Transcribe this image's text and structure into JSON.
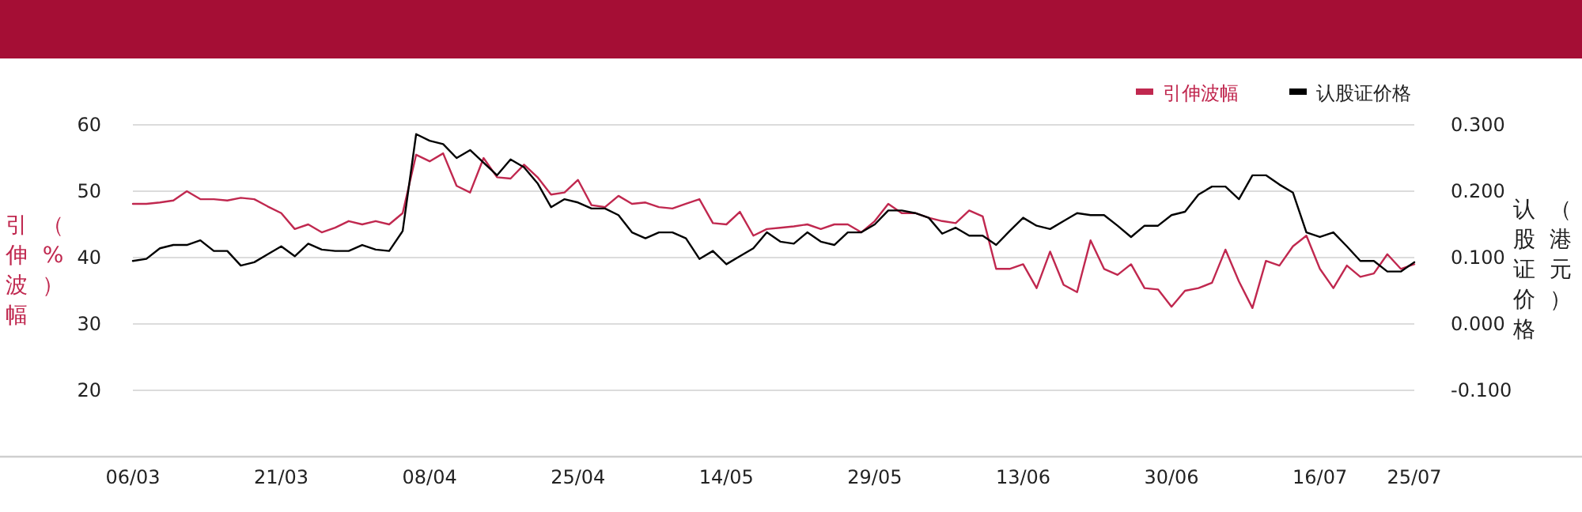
{
  "chart_data": {
    "type": "line",
    "ylabel": "引伸波幅（%）",
    "y2label": "认股证价格（港元）",
    "categories": [
      "06/03",
      null,
      null,
      null,
      null,
      null,
      null,
      null,
      null,
      null,
      null,
      "21/03",
      null,
      null,
      null,
      null,
      null,
      null,
      null,
      null,
      null,
      null,
      "08/04",
      null,
      null,
      null,
      null,
      null,
      null,
      null,
      null,
      null,
      null,
      "25/04",
      null,
      null,
      null,
      null,
      null,
      null,
      null,
      null,
      null,
      null,
      "14/05",
      null,
      null,
      null,
      null,
      null,
      null,
      null,
      null,
      null,
      null,
      "29/05",
      null,
      null,
      null,
      null,
      null,
      null,
      null,
      null,
      null,
      null,
      "13/06",
      null,
      null,
      null,
      null,
      null,
      null,
      null,
      null,
      null,
      null,
      "30/06",
      null,
      null,
      null,
      null,
      null,
      null,
      null,
      null,
      null,
      null,
      "16/07",
      null,
      null,
      null,
      null,
      null,
      null,
      "25/07"
    ],
    "series": [
      {
        "name": "引伸波幅",
        "color": "#c0284f",
        "values": [
          48.1,
          48.1,
          48.3,
          48.6,
          50.0,
          48.8,
          48.8,
          48.6,
          49.0,
          48.8,
          47.7,
          46.7,
          44.3,
          45.0,
          43.8,
          44.5,
          45.5,
          45.0,
          45.5,
          45.0,
          46.7,
          55.5,
          54.5,
          55.7,
          50.8,
          49.8,
          55.0,
          52.1,
          51.9,
          54.0,
          52.1,
          49.5,
          49.8,
          51.7,
          47.9,
          47.6,
          49.3,
          48.1,
          48.3,
          47.6,
          47.4,
          48.1,
          48.8,
          45.2,
          45.0,
          46.9,
          43.3,
          44.3,
          44.5,
          44.7,
          45.0,
          44.3,
          45.0,
          45.0,
          43.8,
          45.5,
          48.1,
          46.7,
          46.7,
          46.0,
          45.5,
          45.2,
          47.1,
          46.2,
          38.3,
          38.3,
          39.0,
          35.4,
          40.9,
          35.9,
          34.8,
          42.6,
          38.3,
          37.4,
          39.0,
          35.4,
          35.2,
          32.6,
          35.0,
          35.4,
          36.2,
          41.2,
          36.4,
          32.4,
          39.5,
          38.8,
          41.7,
          43.3,
          38.3,
          35.4,
          38.8,
          37.1,
          37.6,
          40.5,
          38.3,
          39.0
        ]
      },
      {
        "name": "认股证价格",
        "color": "#000000",
        "axis": "y2",
        "values": [
          0.095,
          0.098,
          0.114,
          0.119,
          0.119,
          0.126,
          0.11,
          0.11,
          0.088,
          0.093,
          0.105,
          0.117,
          0.102,
          0.121,
          0.112,
          0.11,
          0.11,
          0.119,
          0.112,
          0.11,
          0.14,
          0.286,
          0.276,
          0.271,
          0.25,
          0.262,
          0.243,
          0.224,
          0.248,
          0.236,
          0.212,
          0.176,
          0.188,
          0.183,
          0.174,
          0.174,
          0.164,
          0.138,
          0.129,
          0.138,
          0.138,
          0.129,
          0.098,
          0.11,
          0.09,
          0.102,
          0.114,
          0.138,
          0.124,
          0.121,
          0.138,
          0.124,
          0.119,
          0.138,
          0.138,
          0.15,
          0.171,
          0.171,
          0.167,
          0.16,
          0.136,
          0.145,
          0.133,
          0.133,
          0.119,
          0.14,
          0.16,
          0.148,
          0.143,
          0.155,
          0.167,
          0.164,
          0.164,
          0.148,
          0.131,
          0.148,
          0.148,
          0.164,
          0.169,
          0.195,
          0.207,
          0.207,
          0.188,
          0.224,
          0.224,
          0.21,
          0.198,
          0.138,
          0.131,
          0.138,
          0.117,
          0.095,
          0.095,
          0.079,
          0.079,
          0.093
        ]
      }
    ],
    "ylim": [
      10,
      60
    ],
    "yticks": [
      20,
      30,
      40,
      50,
      60
    ],
    "y2lim": [
      -0.2,
      0.3
    ],
    "y2ticks": [
      {
        "value": -0.1,
        "label": "-0.100"
      },
      {
        "value": 0,
        "label": "0.000"
      },
      {
        "value": 0.1,
        "label": "0.100"
      },
      {
        "value": 0.2,
        "label": "0.200"
      },
      {
        "value": 0.3,
        "label": "0.300"
      }
    ],
    "grid": "y",
    "legend": "top right",
    "marker": "none",
    "line_style": "solid"
  }
}
